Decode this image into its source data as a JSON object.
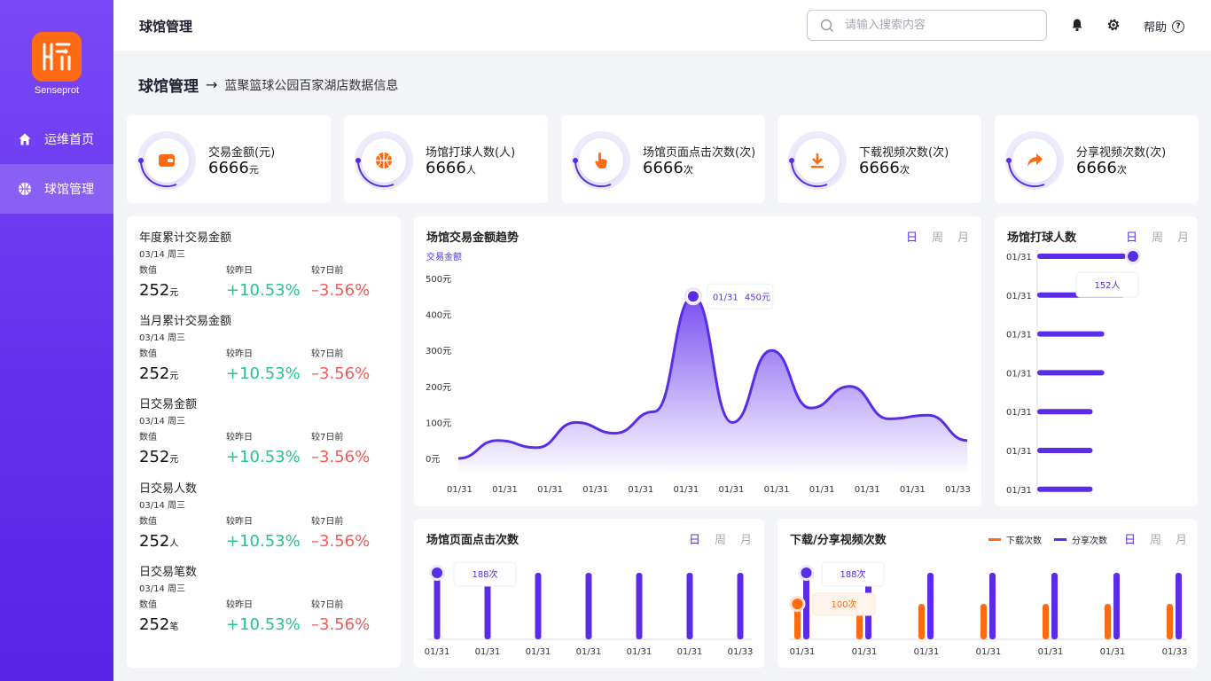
{
  "brand": {
    "name": "Senseprot",
    "accent": "#5b2ce8",
    "logo_color": "#ff6a13"
  },
  "sidebar": {
    "items": [
      {
        "label": "运维首页",
        "icon": "home-icon",
        "active": false
      },
      {
        "label": "球馆管理",
        "icon": "basketball-icon",
        "active": true
      }
    ]
  },
  "header": {
    "title": "球馆管理",
    "search_placeholder": "请输入搜索内容",
    "help_label": "帮助"
  },
  "breadcrumb": {
    "main": "球馆管理",
    "arrow": "→",
    "sub": "蓝聚篮球公园百家湖店数据信息"
  },
  "stats": [
    {
      "label": "交易金额(元)",
      "value": "6666",
      "unit": "元",
      "icon": "wallet-icon"
    },
    {
      "label": "场馆打球人数(人)",
      "value": "6666",
      "unit": "人",
      "icon": "basketball-icon"
    },
    {
      "label": "场馆页面点击次数(次)",
      "value": "6666",
      "unit": "次",
      "icon": "click-hand-icon"
    },
    {
      "label": "下载视频次数(次)",
      "value": "6666",
      "unit": "次",
      "icon": "download-icon"
    },
    {
      "label": "分享视频次数(次)",
      "value": "6666",
      "unit": "次",
      "icon": "share-icon"
    }
  ],
  "metrics": {
    "headers": [
      "数值",
      "较昨日",
      "较7日前"
    ],
    "items": [
      {
        "title": "年度累计交易金额",
        "date": "03/14 周三",
        "value": "252",
        "unit": "元",
        "vs_yesterday": "+10.53%",
        "vs_7days": "–3.56%"
      },
      {
        "title": "当月累计交易金额",
        "date": "03/14 周三",
        "value": "252",
        "unit": "元",
        "vs_yesterday": "+10.53%",
        "vs_7days": "–3.56%"
      },
      {
        "title": "日交易金额",
        "date": "03/14 周三",
        "value": "252",
        "unit": "元",
        "vs_yesterday": "+10.53%",
        "vs_7days": "–3.56%"
      },
      {
        "title": "日交易人数",
        "date": "03/14 周三",
        "value": "252",
        "unit": "人",
        "vs_yesterday": "+10.53%",
        "vs_7days": "–3.56%"
      },
      {
        "title": "日交易笔数",
        "date": "03/14 周三",
        "value": "252",
        "unit": "笔",
        "vs_yesterday": "+10.53%",
        "vs_7days": "–3.56%"
      }
    ]
  },
  "tabs": [
    "日",
    "周",
    "月"
  ],
  "trend": {
    "title": "场馆交易金额趋势",
    "legend": "交易金额",
    "tooltip_date": "01/31",
    "tooltip_value": "450元",
    "y_ticks": [
      "500元",
      "400元",
      "300元",
      "200元",
      "100元",
      "0元"
    ],
    "x_ticks": [
      "01/31",
      "01/31",
      "01/31",
      "01/31",
      "01/31",
      "01/31",
      "01/31",
      "01/31",
      "01/31",
      "01/31",
      "01/31",
      "01/33"
    ],
    "values": [
      0,
      50,
      30,
      100,
      70,
      130,
      450,
      100,
      300,
      140,
      200,
      110,
      120,
      50
    ]
  },
  "players": {
    "title": "场馆打球人数",
    "tooltip": "152人",
    "categories": [
      "01/31",
      "01/31",
      "01/31",
      "01/31",
      "01/31",
      "01/31",
      "01/31"
    ],
    "values": [
      152,
      150,
      115,
      115,
      95,
      95,
      95
    ]
  },
  "clicks": {
    "title": "场馆页面点击次数",
    "tooltip": "188次",
    "categories": [
      "01/31",
      "01/31",
      "01/31",
      "01/31",
      "01/31",
      "01/31",
      "01/33"
    ],
    "values": [
      188,
      188,
      188,
      188,
      188,
      188,
      188
    ]
  },
  "videos": {
    "title": "下载/分享视频次数",
    "legend_download": "下载次数",
    "legend_share": "分享次数",
    "download_color": "#ff6a13",
    "share_color": "#5b2ce8",
    "tooltip_share": "188次",
    "tooltip_download": "100次",
    "categories": [
      "01/31",
      "01/31",
      "01/31",
      "01/31",
      "01/31",
      "01/31",
      "01/33"
    ],
    "download": [
      100,
      100,
      100,
      100,
      100,
      100,
      100
    ],
    "share": [
      188,
      188,
      188,
      188,
      188,
      188,
      188
    ]
  }
}
